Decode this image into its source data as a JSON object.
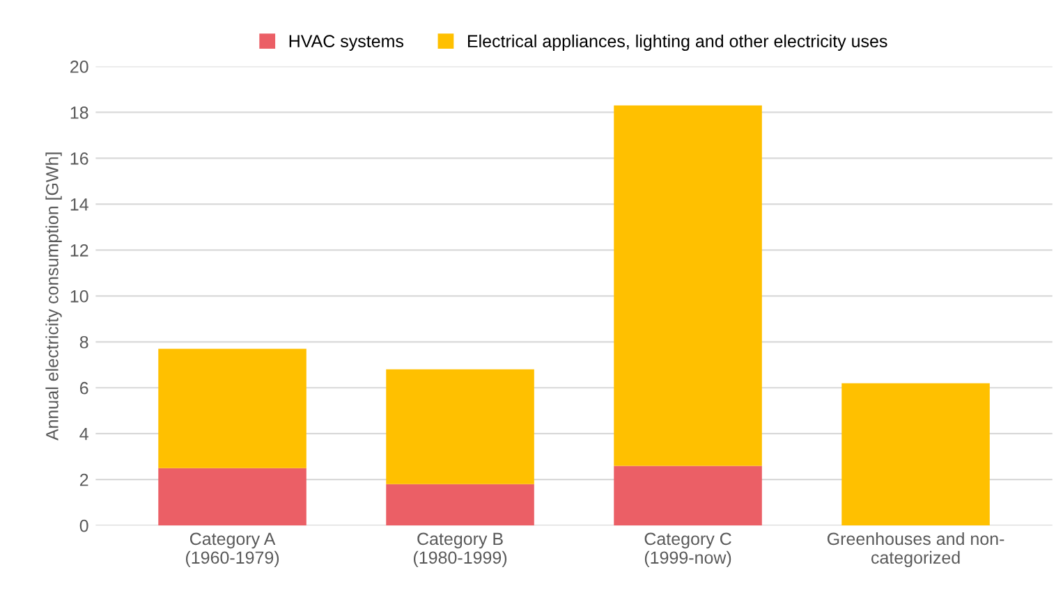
{
  "chart_data": {
    "type": "bar",
    "stacked": true,
    "ylabel": "Annual electricity consumption [GWh]",
    "categories": [
      "Category A\n(1960-1979)",
      "Category B\n(1980-1999)",
      "Category C\n(1999-now)",
      "Greenhouses and non-\ncategorized"
    ],
    "series": [
      {
        "name": "HVAC systems",
        "color": "#eb5f66",
        "values": [
          2.5,
          1.8,
          2.6,
          0
        ]
      },
      {
        "name": "Electrical appliances, lighting and other electricity uses",
        "color": "#ffc000",
        "values": [
          5.2,
          5.0,
          15.7,
          6.2
        ]
      }
    ],
    "ylim": [
      0,
      20
    ],
    "yticks": [
      0,
      2,
      4,
      6,
      8,
      10,
      12,
      14,
      16,
      18,
      20
    ],
    "grid": "y",
    "legend": "top"
  }
}
